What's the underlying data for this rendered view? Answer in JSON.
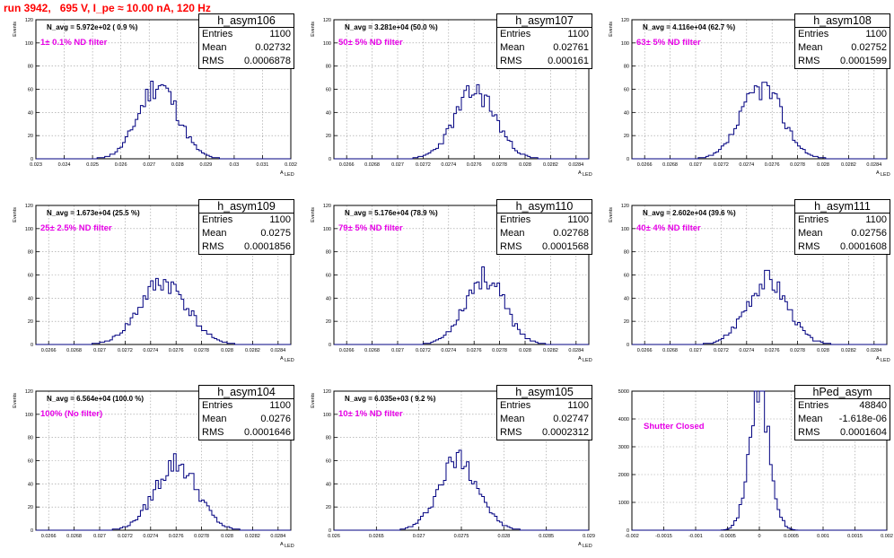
{
  "run_title": "run 3942,   695 V, I_pe ≈ 10.00 nA, 120 Hz",
  "colors": {
    "histogram": "#000080",
    "filter_text": "#e600e6",
    "title": "#ff0000",
    "grid": "#999999"
  },
  "stat_labels": {
    "entries": "Entries",
    "mean": "Mean",
    "rms": "RMS"
  },
  "chart_data": [
    {
      "type": "bar",
      "name": "h_asym106",
      "navg": "N_avg = 5.972e+02 ( 0.9 %)",
      "filter": "1± 0.1% ND filter",
      "entries": "1100",
      "mean": "0.02732",
      "rms": "0.0006878",
      "xlim": [
        0.023,
        0.032
      ],
      "ylim": [
        0,
        120
      ],
      "xticks": [
        0.023,
        0.024,
        0.025,
        0.026,
        0.027,
        0.028,
        0.029,
        0.03,
        0.031,
        0.032
      ],
      "xtick_labels": [
        "0.023",
        "0.024",
        "0.025",
        "0.026",
        "0.027",
        "0.028",
        "0.029",
        "0.03",
        "0.031",
        "0.032"
      ],
      "yticks": [
        0,
        20,
        40,
        60,
        80,
        100,
        120
      ],
      "ytick_labels": [
        "0",
        "20",
        "40",
        "60",
        "80",
        "100",
        "120"
      ],
      "xlabel": "A",
      "xlabel_sub": "LED",
      "ylabel": "Events",
      "mu": 0.02732,
      "sigma": 0.00069,
      "peak": 64,
      "seed": 11
    },
    {
      "type": "bar",
      "name": "h_asym107",
      "navg": "N_avg = 3.281e+04 (50.0 %)",
      "filter": "50± 5% ND filter",
      "entries": "1100",
      "mean": "0.02761",
      "rms": "0.000161",
      "xlim": [
        0.0265,
        0.0285
      ],
      "ylim": [
        0,
        120
      ],
      "xticks": [
        0.0266,
        0.0268,
        0.027,
        0.0272,
        0.0274,
        0.0276,
        0.0278,
        0.028,
        0.0282,
        0.0284
      ],
      "xtick_labels": [
        "0.0266",
        "0.0268",
        "0.027",
        "0.0272",
        "0.0274",
        "0.0276",
        "0.0278",
        "0.028",
        "0.0282",
        "0.0284"
      ],
      "yticks": [
        0,
        20,
        40,
        60,
        80,
        100,
        120
      ],
      "ytick_labels": [
        "0",
        "20",
        "40",
        "60",
        "80",
        "100",
        "120"
      ],
      "xlabel": "A",
      "xlabel_sub": "LED",
      "ylabel": "Events",
      "mu": 0.02761,
      "sigma": 0.000161,
      "peak": 58,
      "seed": 23
    },
    {
      "type": "bar",
      "name": "h_asym108",
      "navg": "N_avg = 4.116e+04 (62.7 %)",
      "filter": "63± 5% ND filter",
      "entries": "1100",
      "mean": "0.02752",
      "rms": "0.0001599",
      "xlim": [
        0.0265,
        0.0285
      ],
      "ylim": [
        0,
        120
      ],
      "xticks": [
        0.0266,
        0.0268,
        0.027,
        0.0272,
        0.0274,
        0.0276,
        0.0278,
        0.028,
        0.0282,
        0.0284
      ],
      "xtick_labels": [
        "0.0266",
        "0.0268",
        "0.027",
        "0.0272",
        "0.0274",
        "0.0276",
        "0.0278",
        "0.028",
        "0.0282",
        "0.0284"
      ],
      "yticks": [
        0,
        20,
        40,
        60,
        80,
        100,
        120
      ],
      "ytick_labels": [
        "0",
        "20",
        "40",
        "60",
        "80",
        "100",
        "120"
      ],
      "xlabel": "A",
      "xlabel_sub": "LED",
      "ylabel": "Events",
      "mu": 0.02752,
      "sigma": 0.00016,
      "peak": 62,
      "seed": 37
    },
    {
      "type": "bar",
      "name": "h_asym109",
      "navg": "N_avg = 1.673e+04 (25.5 %)",
      "filter": "25± 2.5% ND filter",
      "entries": "1100",
      "mean": "0.0275",
      "rms": "0.0001856",
      "xlim": [
        0.0265,
        0.0285
      ],
      "ylim": [
        0,
        120
      ],
      "xticks": [
        0.0266,
        0.0268,
        0.027,
        0.0272,
        0.0274,
        0.0276,
        0.0278,
        0.028,
        0.0282,
        0.0284
      ],
      "xtick_labels": [
        "0.0266",
        "0.0268",
        "0.027",
        "0.0272",
        "0.0274",
        "0.0276",
        "0.0278",
        "0.028",
        "0.0282",
        "0.0284"
      ],
      "yticks": [
        0,
        20,
        40,
        60,
        80,
        100,
        120
      ],
      "ytick_labels": [
        "0",
        "20",
        "40",
        "60",
        "80",
        "100",
        "120"
      ],
      "xlabel": "A",
      "xlabel_sub": "LED",
      "ylabel": "Events",
      "mu": 0.0275,
      "sigma": 0.000186,
      "peak": 54,
      "seed": 41
    },
    {
      "type": "bar",
      "name": "h_asym110",
      "navg": "N_avg = 5.176e+04 (78.9 %)",
      "filter": "79± 5% ND filter",
      "entries": "1100",
      "mean": "0.02768",
      "rms": "0.0001568",
      "xlim": [
        0.0265,
        0.0285
      ],
      "ylim": [
        0,
        120
      ],
      "xticks": [
        0.0266,
        0.0268,
        0.027,
        0.0272,
        0.0274,
        0.0276,
        0.0278,
        0.028,
        0.0282,
        0.0284
      ],
      "xtick_labels": [
        "0.0266",
        "0.0268",
        "0.027",
        "0.0272",
        "0.0274",
        "0.0276",
        "0.0278",
        "0.028",
        "0.0282",
        "0.0284"
      ],
      "yticks": [
        0,
        20,
        40,
        60,
        80,
        100,
        120
      ],
      "ytick_labels": [
        "0",
        "20",
        "40",
        "60",
        "80",
        "100",
        "120"
      ],
      "xlabel": "A",
      "xlabel_sub": "LED",
      "ylabel": "Events",
      "mu": 0.02768,
      "sigma": 0.000157,
      "peak": 58,
      "seed": 53
    },
    {
      "type": "bar",
      "name": "h_asym111",
      "navg": "N_avg = 2.602e+04 (39.6 %)",
      "filter": "40± 4% ND filter",
      "entries": "1100",
      "mean": "0.02756",
      "rms": "0.0001608",
      "xlim": [
        0.0265,
        0.0285
      ],
      "ylim": [
        0,
        120
      ],
      "xticks": [
        0.0266,
        0.0268,
        0.027,
        0.0272,
        0.0274,
        0.0276,
        0.0278,
        0.028,
        0.0282,
        0.0284
      ],
      "xtick_labels": [
        "0.0266",
        "0.0268",
        "0.027",
        "0.0272",
        "0.0274",
        "0.0276",
        "0.0278",
        "0.028",
        "0.0282",
        "0.0284"
      ],
      "yticks": [
        0,
        20,
        40,
        60,
        80,
        100,
        120
      ],
      "ytick_labels": [
        "0",
        "20",
        "40",
        "60",
        "80",
        "100",
        "120"
      ],
      "xlabel": "A",
      "xlabel_sub": "LED",
      "ylabel": "Events",
      "mu": 0.02756,
      "sigma": 0.000161,
      "peak": 56,
      "seed": 67
    },
    {
      "type": "bar",
      "name": "h_asym104",
      "navg": "N_avg = 6.564e+04 (100.0 %)",
      "filter": "100% (No filter)",
      "entries": "1100",
      "mean": "0.0276",
      "rms": "0.0001646",
      "xlim": [
        0.0265,
        0.0285
      ],
      "ylim": [
        0,
        120
      ],
      "xticks": [
        0.0266,
        0.0268,
        0.027,
        0.0272,
        0.0274,
        0.0276,
        0.0278,
        0.028,
        0.0282,
        0.0284
      ],
      "xtick_labels": [
        "0.0266",
        "0.0268",
        "0.027",
        "0.0272",
        "0.0274",
        "0.0276",
        "0.0278",
        "0.028",
        "0.0282",
        "0.0284"
      ],
      "yticks": [
        0,
        20,
        40,
        60,
        80,
        100,
        120
      ],
      "ytick_labels": [
        "0",
        "20",
        "40",
        "60",
        "80",
        "100",
        "120"
      ],
      "xlabel": "A",
      "xlabel_sub": "LED",
      "ylabel": "Events",
      "mu": 0.0276,
      "sigma": 0.000165,
      "peak": 58,
      "seed": 79
    },
    {
      "type": "bar",
      "name": "h_asym105",
      "navg": "N_avg = 6.035e+03 ( 9.2 %)",
      "filter": "10± 1% ND filter",
      "entries": "1100",
      "mean": "0.02747",
      "rms": "0.0002312",
      "xlim": [
        0.026,
        0.029
      ],
      "ylim": [
        0,
        120
      ],
      "xticks": [
        0.026,
        0.0265,
        0.027,
        0.0275,
        0.028,
        0.0285,
        0.029
      ],
      "xtick_labels": [
        "0.026",
        "0.0265",
        "0.027",
        "0.0275",
        "0.028",
        "0.0285",
        "0.029"
      ],
      "yticks": [
        0,
        20,
        40,
        60,
        80,
        100,
        120
      ],
      "ytick_labels": [
        "0",
        "20",
        "40",
        "60",
        "80",
        "100",
        "120"
      ],
      "xlabel": "A",
      "xlabel_sub": "LED",
      "ylabel": "Events",
      "mu": 0.02747,
      "sigma": 0.000231,
      "peak": 62,
      "seed": 97
    },
    {
      "type": "bar",
      "name": "hPed_asym",
      "navg": "",
      "filter": "Shutter Closed",
      "entries": "48840",
      "mean": "-1.618e-06",
      "rms": "0.0001604",
      "xlim": [
        -0.002,
        0.002
      ],
      "ylim": [
        0,
        5000
      ],
      "xticks": [
        -0.002,
        -0.0015,
        -0.001,
        -0.0005,
        0,
        0.0005,
        0.001,
        0.0015,
        0.002
      ],
      "xtick_labels": [
        "-0.002",
        "-0.0015",
        "-0.001",
        "-0.0005",
        "0",
        "0.0005",
        "0.001",
        "0.0015",
        "0.002"
      ],
      "yticks": [
        0,
        1000,
        2000,
        3000,
        4000,
        5000
      ],
      "ytick_labels": [
        "0",
        "1000",
        "2000",
        "3000",
        "4000",
        "5000"
      ],
      "xlabel": "",
      "xlabel_sub": "",
      "ylabel": "",
      "mu": 0,
      "sigma": 0.00016,
      "peak": 4950,
      "seed": 101
    }
  ]
}
